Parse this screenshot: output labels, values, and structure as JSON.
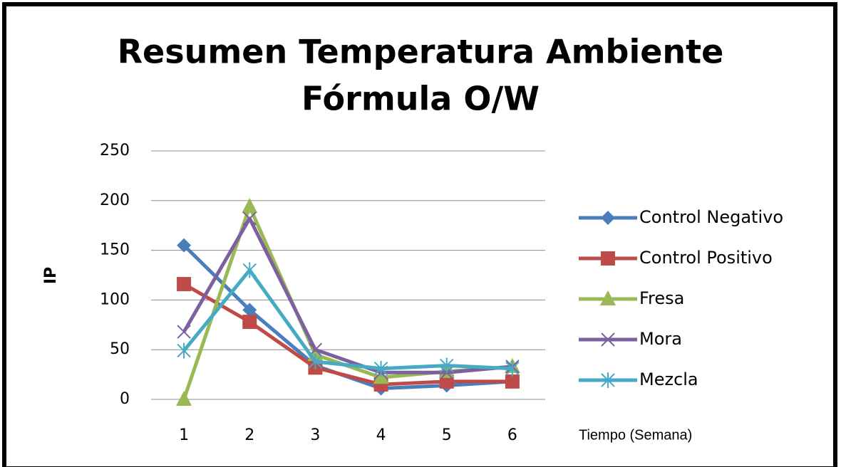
{
  "chart_data": {
    "type": "line",
    "title": [
      "Resumen Temperatura Ambiente",
      "Fórmula O/W"
    ],
    "y_label": "IP",
    "x_label": "Tiempo (Semana)",
    "categories": [
      1,
      2,
      3,
      4,
      5,
      6
    ],
    "ylim": [
      0,
      250
    ],
    "yticks": [
      0,
      50,
      100,
      150,
      200,
      250
    ],
    "grid": true,
    "series": [
      {
        "name": "Control Negativo",
        "color": "#4a7ebb",
        "marker": "diamond",
        "values": [
          155,
          90,
          34,
          11,
          14,
          18
        ]
      },
      {
        "name": "Control Positivo",
        "color": "#be4b48",
        "marker": "square",
        "values": [
          116,
          78,
          32,
          15,
          18,
          18
        ]
      },
      {
        "name": "Fresa",
        "color": "#98b954",
        "marker": "triangle",
        "values": [
          0,
          194,
          45,
          22,
          28,
          33
        ]
      },
      {
        "name": "Mora",
        "color": "#7d60a0",
        "marker": "x",
        "values": [
          68,
          182,
          50,
          27,
          27,
          33
        ]
      },
      {
        "name": "Mezcla",
        "color": "#46aac5",
        "marker": "asterisk",
        "values": [
          49,
          130,
          38,
          31,
          34,
          31
        ]
      }
    ]
  }
}
